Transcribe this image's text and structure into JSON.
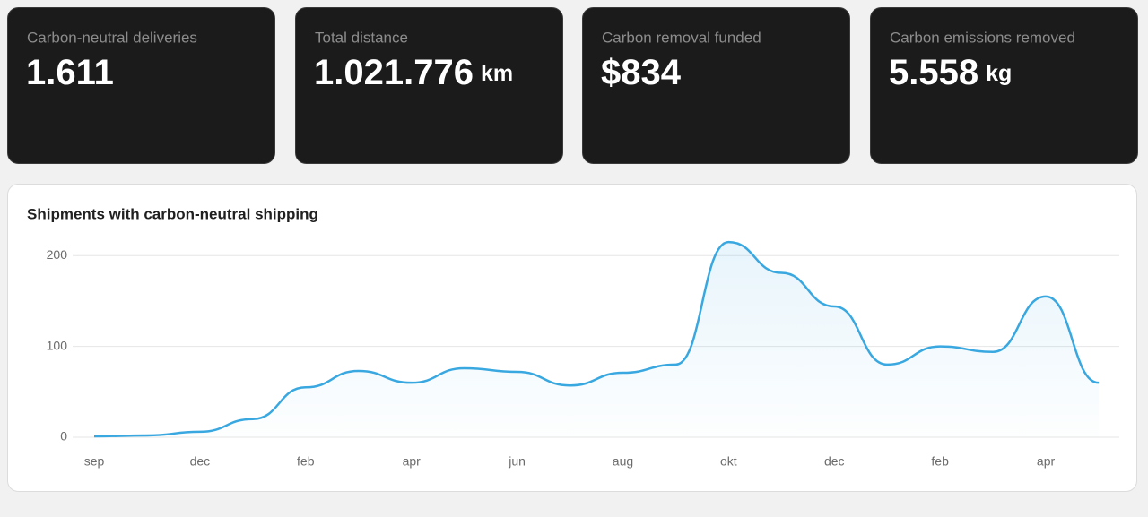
{
  "cards": [
    {
      "label": "Carbon-neutral deliveries",
      "value": "1.611"
    },
    {
      "label": "Total distance",
      "value": "1.021.776",
      "unit": "km"
    },
    {
      "label": "Carbon removal funded",
      "value": "$834"
    },
    {
      "label": "Carbon emissions removed",
      "value": "5.558",
      "unit": "kg"
    }
  ],
  "chart_data": {
    "type": "line",
    "title": "Shipments with carbon-neutral shipping",
    "categories": [
      "sep",
      null,
      "dec",
      null,
      "feb",
      null,
      "apr",
      null,
      "jun",
      null,
      "aug",
      null,
      "okt",
      null,
      "dec",
      null,
      "feb",
      null,
      "apr",
      null
    ],
    "series": [
      {
        "name": "Shipments",
        "color": "#3aa8e0",
        "values": [
          1,
          2,
          6,
          20,
          55,
          73,
          60,
          76,
          72,
          57,
          71,
          80,
          215,
          181,
          144,
          80,
          100,
          94,
          155,
          60
        ]
      }
    ],
    "ylim": [
      0,
      220
    ],
    "yticks": [
      0,
      100,
      200
    ],
    "grid": true
  }
}
